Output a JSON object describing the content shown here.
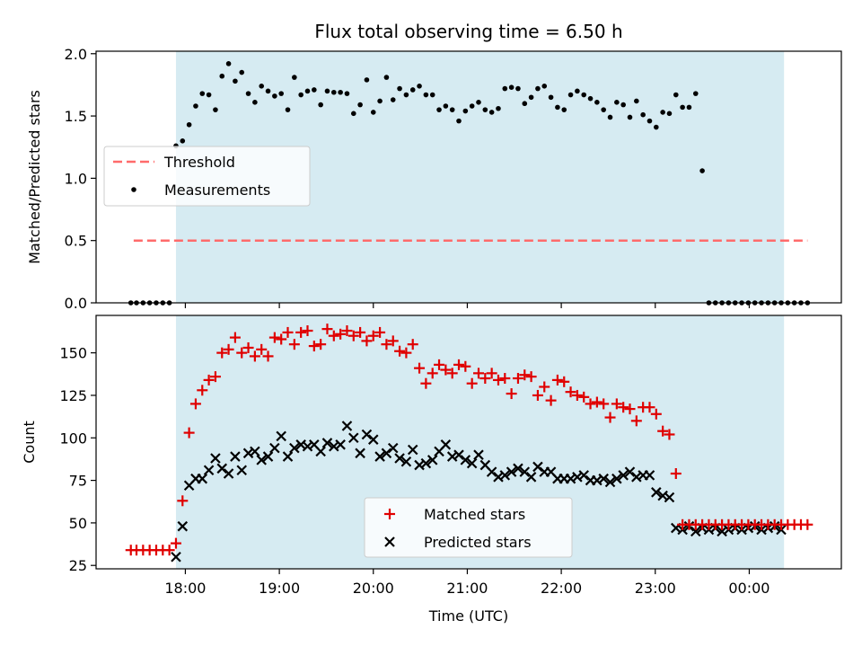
{
  "title": "Flux total observing time = 6.50 h",
  "colors": {
    "threshold": "#ff6b6b",
    "measurements": "#000000",
    "matched": "#e00000",
    "predicted": "#000000",
    "span": "#add8e6"
  },
  "chart_data": [
    {
      "type": "scatter",
      "panel": "top",
      "ylabel": "Matched/Predicted stars",
      "ylim": [
        0,
        2.02
      ],
      "yticks": [
        0.0,
        0.5,
        1.0,
        1.5,
        2.0
      ],
      "ytick_labels": [
        "0.0",
        "0.5",
        "1.0",
        "1.5",
        "2.0"
      ],
      "grid": false,
      "legend_position": "center-left",
      "shaded_span": {
        "x0_hours": 17.9,
        "x1_hours": 24.37
      },
      "legend": [
        {
          "label": "Threshold",
          "kind": "dashed-line"
        },
        {
          "label": "Measurements",
          "kind": "dot"
        }
      ],
      "threshold": {
        "value": 0.5,
        "x_start_hours": 17.45,
        "x_end_hours": 24.62
      },
      "series": [
        {
          "name": "Measurements",
          "x_hours": [
            17.42,
            17.48,
            17.55,
            17.62,
            17.69,
            17.76,
            17.83,
            17.9,
            17.97,
            18.04,
            18.11,
            18.18,
            18.25,
            18.32,
            18.39,
            18.46,
            18.53,
            18.6,
            18.67,
            18.74,
            18.81,
            18.88,
            18.95,
            19.02,
            19.09,
            19.16,
            19.23,
            19.3,
            19.37,
            19.44,
            19.51,
            19.58,
            19.65,
            19.72,
            19.79,
            19.86,
            19.93,
            20.0,
            20.07,
            20.14,
            20.21,
            20.28,
            20.35,
            20.42,
            20.49,
            20.56,
            20.63,
            20.7,
            20.77,
            20.84,
            20.91,
            20.98,
            21.05,
            21.12,
            21.19,
            21.26,
            21.33,
            21.4,
            21.47,
            21.54,
            21.61,
            21.68,
            21.75,
            21.82,
            21.89,
            21.96,
            22.03,
            22.1,
            22.17,
            22.24,
            22.31,
            22.38,
            22.45,
            22.52,
            22.59,
            22.66,
            22.73,
            22.8,
            22.87,
            22.94,
            23.01,
            23.08,
            23.15,
            23.22,
            23.29,
            23.36,
            23.43,
            23.5,
            23.57,
            23.64,
            23.71,
            23.78,
            23.85,
            23.92,
            23.99,
            24.06,
            24.13,
            24.2,
            24.27,
            24.34,
            24.41,
            24.48,
            24.55,
            24.62
          ],
          "y": [
            0,
            0,
            0,
            0,
            0,
            0,
            0,
            1.26,
            1.3,
            1.43,
            1.58,
            1.68,
            1.67,
            1.55,
            1.82,
            1.92,
            1.78,
            1.85,
            1.68,
            1.61,
            1.74,
            1.7,
            1.66,
            1.68,
            1.55,
            1.81,
            1.67,
            1.7,
            1.71,
            1.59,
            1.7,
            1.69,
            1.69,
            1.68,
            1.52,
            1.59,
            1.79,
            1.53,
            1.62,
            1.81,
            1.63,
            1.72,
            1.67,
            1.71,
            1.74,
            1.67,
            1.67,
            1.55,
            1.58,
            1.55,
            1.46,
            1.54,
            1.58,
            1.61,
            1.55,
            1.53,
            1.56,
            1.72,
            1.73,
            1.72,
            1.6,
            1.65,
            1.72,
            1.74,
            1.65,
            1.57,
            1.55,
            1.67,
            1.7,
            1.67,
            1.64,
            1.61,
            1.55,
            1.49,
            1.61,
            1.59,
            1.49,
            1.62,
            1.51,
            1.46,
            1.41,
            1.53,
            1.52,
            1.67,
            1.57,
            1.57,
            1.68,
            1.06,
            0,
            0,
            0,
            0,
            0,
            0,
            0,
            0,
            0,
            0,
            0,
            0,
            0,
            0,
            0,
            0
          ]
        }
      ]
    },
    {
      "type": "scatter",
      "panel": "bottom",
      "xlabel": "Time (UTC)",
      "ylabel": "Count",
      "xlim_hours": [
        17.05,
        24.98
      ],
      "ylim": [
        23,
        172
      ],
      "yticks": [
        25,
        50,
        75,
        100,
        125,
        150
      ],
      "ytick_labels": [
        "25",
        "50",
        "75",
        "100",
        "125",
        "150"
      ],
      "xticks_hours": [
        18,
        19,
        20,
        21,
        22,
        23,
        24
      ],
      "xtick_labels": [
        "18:00",
        "19:00",
        "20:00",
        "21:00",
        "22:00",
        "23:00",
        "00:00"
      ],
      "grid": false,
      "legend_position": "bottom-center",
      "shaded_span": {
        "x0_hours": 17.9,
        "x1_hours": 24.37
      },
      "legend": [
        {
          "label": "Matched stars",
          "kind": "plus"
        },
        {
          "label": "Predicted stars",
          "kind": "cross"
        }
      ],
      "series": [
        {
          "name": "Matched stars",
          "x_hours": [
            17.42,
            17.48,
            17.55,
            17.62,
            17.69,
            17.76,
            17.83,
            17.9,
            17.97,
            18.04,
            18.11,
            18.18,
            18.25,
            18.32,
            18.39,
            18.46,
            18.53,
            18.6,
            18.67,
            18.74,
            18.81,
            18.88,
            18.95,
            19.02,
            19.09,
            19.16,
            19.23,
            19.3,
            19.37,
            19.44,
            19.51,
            19.58,
            19.65,
            19.72,
            19.79,
            19.86,
            19.93,
            20.0,
            20.07,
            20.14,
            20.21,
            20.28,
            20.35,
            20.42,
            20.49,
            20.56,
            20.63,
            20.7,
            20.77,
            20.84,
            20.91,
            20.98,
            21.05,
            21.12,
            21.19,
            21.26,
            21.33,
            21.4,
            21.47,
            21.54,
            21.61,
            21.68,
            21.75,
            21.82,
            21.89,
            21.96,
            22.03,
            22.1,
            22.17,
            22.24,
            22.31,
            22.38,
            22.45,
            22.52,
            22.59,
            22.66,
            22.73,
            22.8,
            22.87,
            22.94,
            23.01,
            23.08,
            23.15,
            23.22,
            23.29,
            23.36,
            23.43,
            23.5,
            23.57,
            23.64,
            23.71,
            23.78,
            23.85,
            23.92,
            23.99,
            24.06,
            24.13,
            24.2,
            24.27,
            24.34,
            24.41,
            24.48,
            24.55,
            24.62
          ],
          "y": [
            34,
            34,
            34,
            34,
            34,
            34,
            34,
            38,
            63,
            103,
            120,
            128,
            134,
            136,
            150,
            152,
            159,
            150,
            153,
            148,
            152,
            148,
            159,
            158,
            162,
            155,
            162,
            163,
            154,
            155,
            164,
            160,
            161,
            163,
            160,
            162,
            157,
            160,
            162,
            155,
            157,
            151,
            150,
            155,
            141,
            132,
            138,
            143,
            140,
            138,
            143,
            142,
            132,
            138,
            135,
            138,
            134,
            135,
            126,
            135,
            137,
            136,
            125,
            130,
            122,
            134,
            133,
            127,
            125,
            124,
            120,
            121,
            120,
            112,
            120,
            118,
            117,
            110,
            118,
            118,
            114,
            104,
            102,
            79,
            49,
            49,
            49,
            49,
            49,
            49,
            49,
            49,
            49,
            49,
            49,
            49,
            49,
            49,
            49,
            49,
            49,
            49,
            49,
            49
          ]
        },
        {
          "name": "Predicted stars",
          "x_hours": [
            17.9,
            17.97,
            18.04,
            18.11,
            18.18,
            18.25,
            18.32,
            18.39,
            18.46,
            18.53,
            18.6,
            18.67,
            18.74,
            18.81,
            18.88,
            18.95,
            19.02,
            19.09,
            19.16,
            19.23,
            19.3,
            19.37,
            19.44,
            19.51,
            19.58,
            19.65,
            19.72,
            19.79,
            19.86,
            19.93,
            20.0,
            20.07,
            20.14,
            20.21,
            20.28,
            20.35,
            20.42,
            20.49,
            20.56,
            20.63,
            20.7,
            20.77,
            20.84,
            20.91,
            20.98,
            21.05,
            21.12,
            21.19,
            21.26,
            21.33,
            21.4,
            21.47,
            21.54,
            21.61,
            21.68,
            21.75,
            21.82,
            21.89,
            21.96,
            22.03,
            22.1,
            22.17,
            22.24,
            22.31,
            22.38,
            22.45,
            22.52,
            22.59,
            22.66,
            22.73,
            22.8,
            22.87,
            22.94,
            23.01,
            23.08,
            23.15,
            23.22,
            23.29,
            23.36,
            23.43,
            23.5,
            23.57,
            23.64,
            23.71,
            23.78,
            23.85,
            23.92,
            23.99,
            24.06,
            24.13,
            24.2,
            24.27,
            24.34
          ],
          "y": [
            30,
            48,
            72,
            76,
            76,
            81,
            88,
            82,
            79,
            89,
            81,
            91,
            92,
            87,
            89,
            94,
            101,
            89,
            94,
            96,
            95,
            96,
            92,
            97,
            95,
            96,
            107,
            100,
            91,
            102,
            99,
            89,
            91,
            94,
            88,
            86,
            93,
            84,
            85,
            87,
            92,
            96,
            89,
            90,
            87,
            85,
            90,
            84,
            80,
            77,
            78,
            80,
            82,
            80,
            77,
            83,
            80,
            80,
            76,
            76,
            76,
            77,
            78,
            75,
            75,
            76,
            74,
            76,
            78,
            80,
            77,
            78,
            78,
            68,
            66,
            65,
            47,
            46,
            48,
            45,
            47,
            46,
            47,
            45,
            46,
            47,
            46,
            47,
            48,
            46,
            47,
            48,
            46
          ]
        }
      ]
    }
  ]
}
